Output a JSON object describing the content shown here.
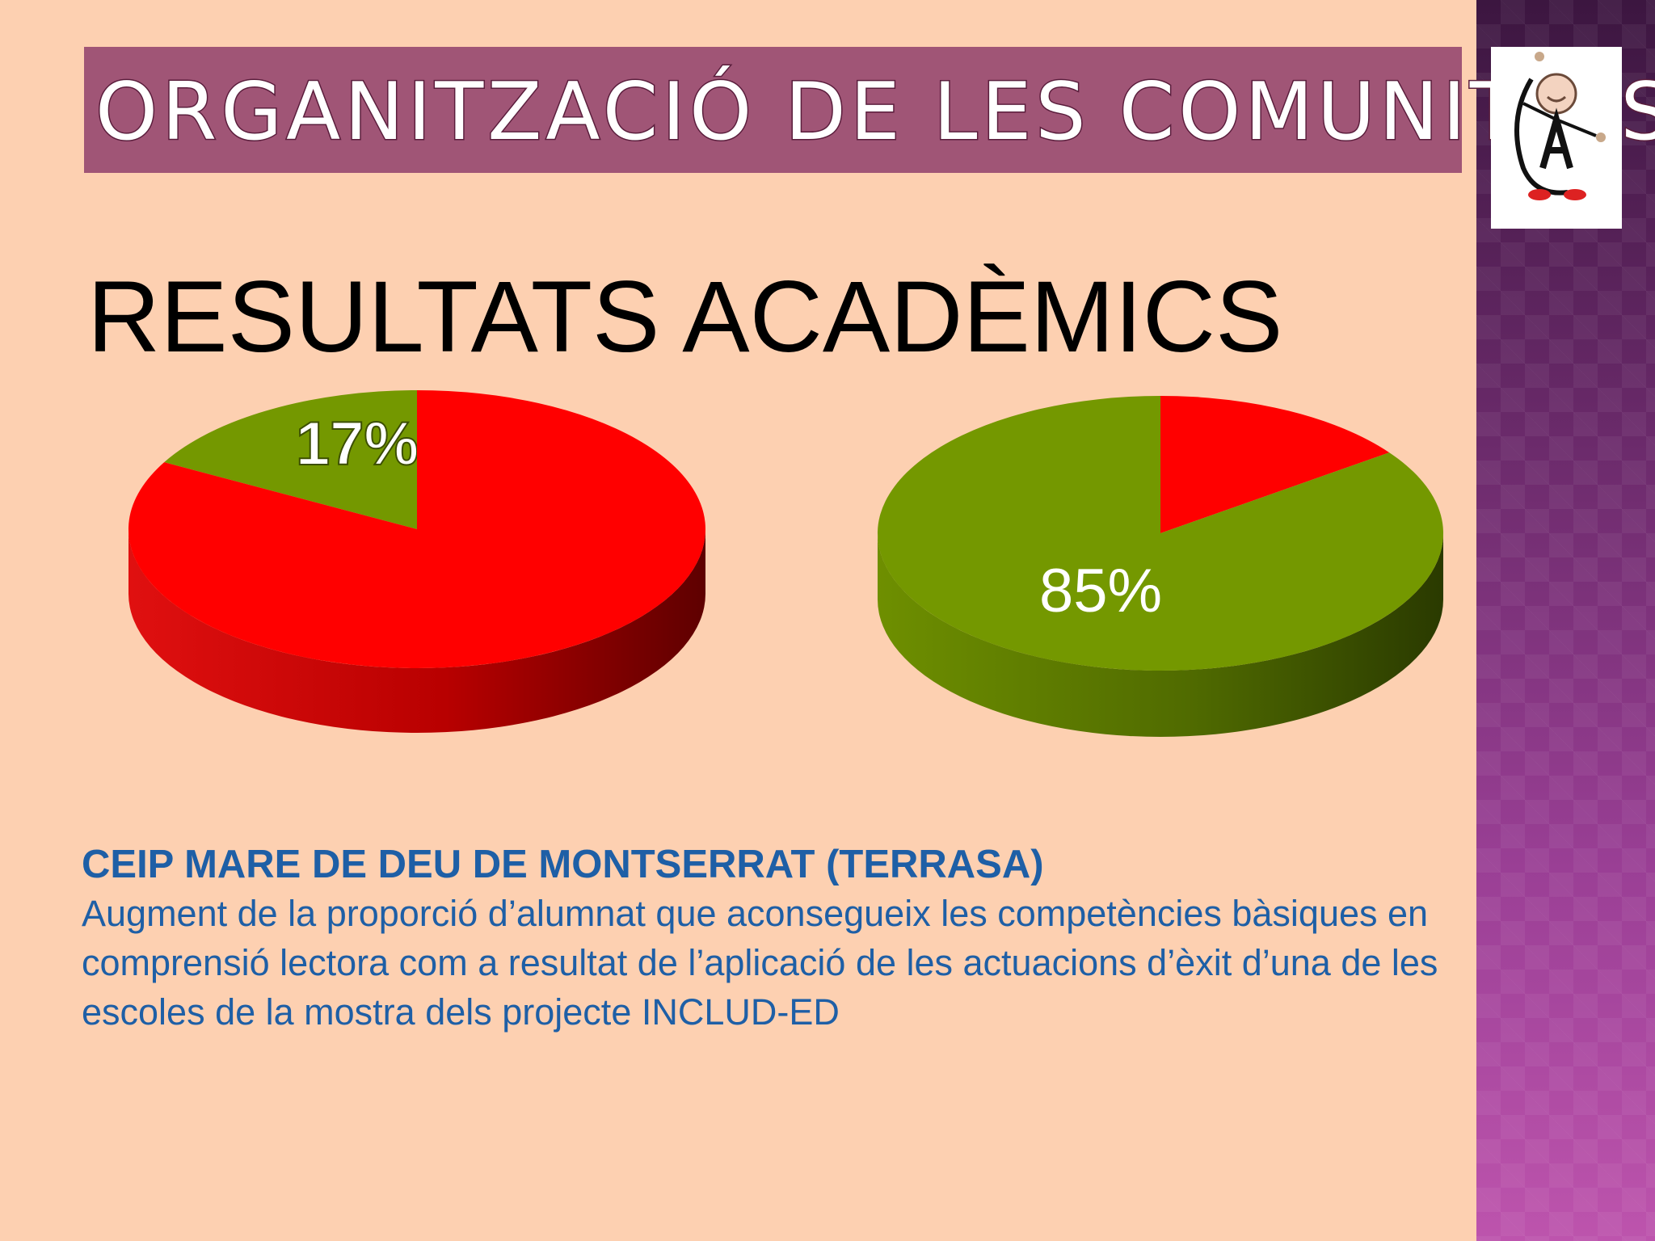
{
  "slide": {
    "title": "ORGANITZACIÓ DE LES COMUNITATS",
    "subtitle": "RESULTATS ACADÈMICS",
    "logo_icon": "school-logo-icon",
    "caption": {
      "heading": "CEIP MARE DE DEU DE MONTSERRAT (TERRASA)",
      "body": "Augment de la proporció d’alumnat que aconsegueix les competències bàsiques en comprensió lectora com a resultat de l’aplicació de les actuacions d’èxit d’una de les escoles de la mostra dels projecte INCLUD-ED"
    },
    "colors": {
      "background": "#fdd0b1",
      "banner": "#a05576",
      "red": "#ff0000",
      "green": "#749800",
      "caption": "#1e5fa6"
    }
  },
  "chart_data": [
    {
      "type": "pie",
      "values": [
        17,
        83
      ],
      "colors": [
        "#749800",
        "#ff0000"
      ],
      "data_labels": [
        "17%",
        ""
      ]
    },
    {
      "type": "pie",
      "values": [
        15,
        85
      ],
      "colors": [
        "#ff0000",
        "#749800"
      ],
      "data_labels": [
        "",
        "85%"
      ]
    }
  ]
}
